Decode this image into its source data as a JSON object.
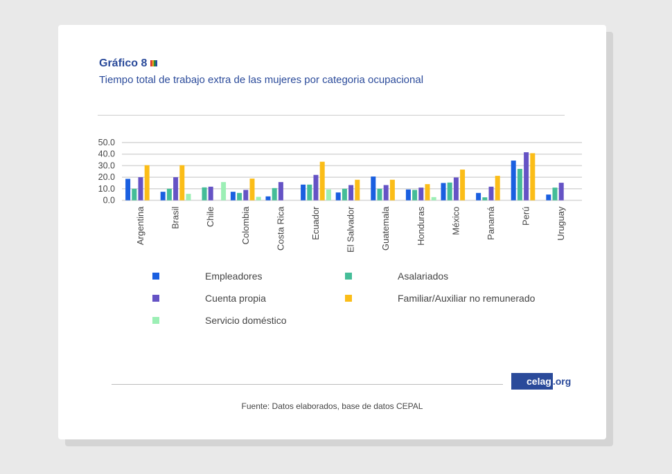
{
  "header": {
    "title": "Gráfico 8",
    "subtitle": "Tiempo total de trabajo extra de las mujeres por categoria ocupacional"
  },
  "footer": {
    "source": "Fuente: Datos elaborados, base de datos CEPAL",
    "logo_main": "celag",
    "logo_suffix": ".org"
  },
  "chart_data": {
    "type": "bar",
    "title": "Tiempo total de trabajo extra de las mujeres por categoria ocupacional",
    "categories": [
      "Argentina",
      "Brasil",
      "Chile",
      "Colombia",
      "Costa Rica",
      "Ecuador",
      "El Salvador",
      "Guatemala",
      "Honduras",
      "México",
      "Panamá",
      "Perú",
      "Uruguay"
    ],
    "yticks": [
      "0.0",
      "10.0",
      "20.0",
      "30.0",
      "40.0",
      "50.0"
    ],
    "ylim": [
      0,
      50
    ],
    "grid": true,
    "legend_position": "bottom",
    "series": [
      {
        "name": "Empleadores",
        "color": "#1a5fe0",
        "values": [
          18.6,
          7.4,
          null,
          7.4,
          3.4,
          13.6,
          6.8,
          20.6,
          9.4,
          15.0,
          6.4,
          34.4,
          5.0
        ]
      },
      {
        "name": "Asalariados",
        "color": "#45bd98",
        "values": [
          10.0,
          10.0,
          11.2,
          6.4,
          10.6,
          13.6,
          10.0,
          10.0,
          9.0,
          15.4,
          2.6,
          27.2,
          11.0
        ]
      },
      {
        "name": "Cuenta propia",
        "color": "#6553c5",
        "values": [
          20.0,
          20.0,
          11.8,
          9.0,
          15.8,
          22.0,
          13.2,
          13.2,
          11.0,
          19.8,
          11.8,
          41.6,
          15.2
        ]
      },
      {
        "name": "Familiar/Auxiliar no remunerado",
        "color": "#fbbd18",
        "values": [
          30.4,
          30.4,
          null,
          18.8,
          null,
          33.4,
          17.8,
          17.8,
          14.0,
          26.6,
          21.2,
          40.8,
          null
        ]
      },
      {
        "name": "Servicio doméstico",
        "color": "#9cefb5",
        "values": [
          null,
          5.6,
          15.8,
          3.0,
          null,
          9.4,
          null,
          null,
          2.8,
          null,
          null,
          null,
          null
        ]
      }
    ]
  }
}
